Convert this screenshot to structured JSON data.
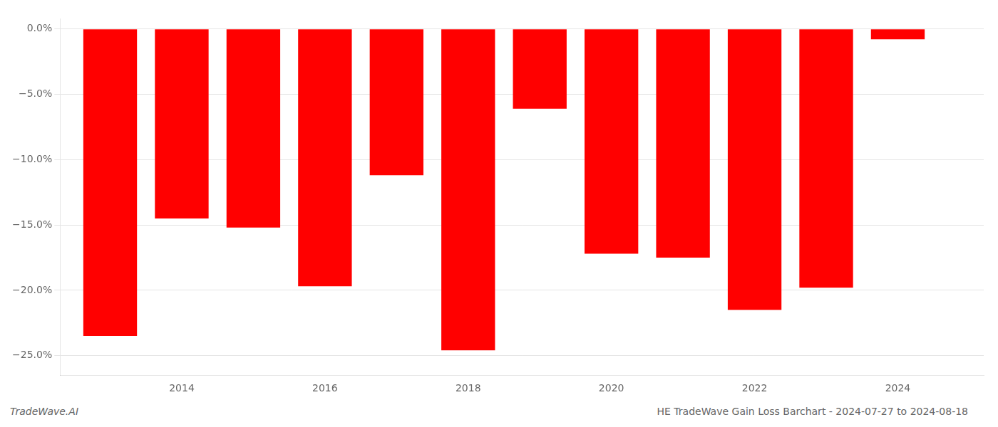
{
  "chart_data": {
    "type": "bar",
    "x": [
      2013,
      2014,
      2015,
      2016,
      2017,
      2018,
      2019,
      2020,
      2021,
      2022,
      2023,
      2024
    ],
    "values": [
      -23.5,
      -14.5,
      -15.2,
      -19.7,
      -11.2,
      -24.6,
      -6.1,
      -17.2,
      -17.5,
      -21.5,
      -19.8,
      -0.8
    ],
    "color": "#ff0000",
    "xlim": [
      2012.3,
      2025.2
    ],
    "xticks": [
      2014,
      2016,
      2018,
      2020,
      2022,
      2024
    ],
    "ylim": [
      -26.5,
      0.8
    ],
    "yticks": [
      {
        "value": 0.0,
        "label": "0.0%"
      },
      {
        "value": -5.0,
        "label": "−5.0%"
      },
      {
        "value": -10.0,
        "label": "−10.0%"
      },
      {
        "value": -15.0,
        "label": "−15.0%"
      },
      {
        "value": -20.0,
        "label": "−20.0%"
      },
      {
        "value": -25.0,
        "label": "−25.0%"
      }
    ],
    "grid": true,
    "annotations": [
      "TradeWave.AI",
      "HE TradeWave Gain Loss Barchart - 2024-07-27 to 2024-08-18"
    ]
  }
}
